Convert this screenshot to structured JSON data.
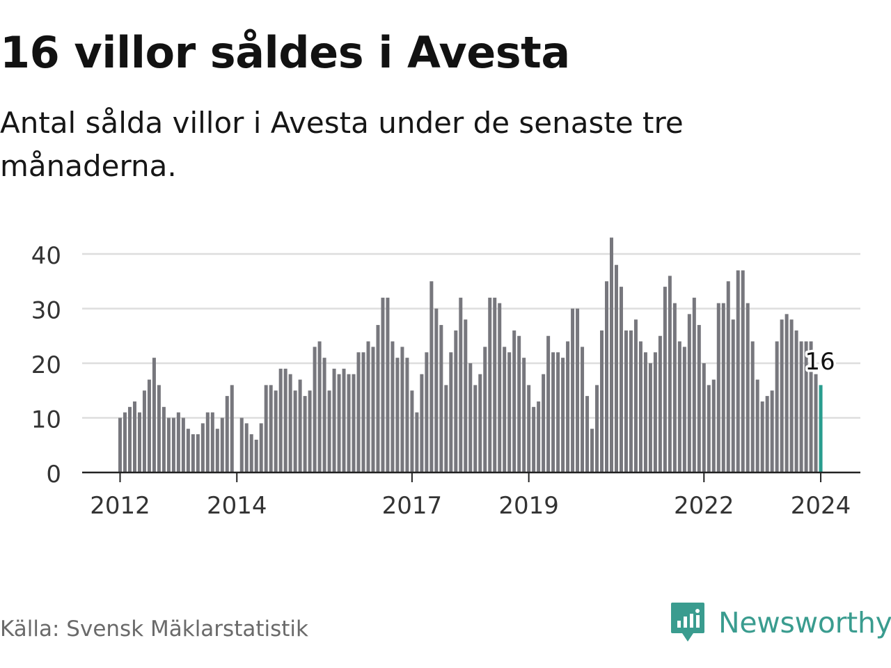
{
  "header": {
    "title": "16 villor såldes i Avesta",
    "subtitle": "Antal sålda villor i Avesta under de senaste tre månaderna."
  },
  "footer": {
    "source": "Källa: Svensk Mäklarstatistik",
    "brand": "Newsworthy",
    "brand_icon": "chart-bubble-icon"
  },
  "colors": {
    "bar": "#77777d",
    "highlight": "#2a9d8f",
    "grid": "#dddddd",
    "axis": "#222222",
    "brand": "#3a9c8f"
  },
  "chart_data": {
    "type": "bar",
    "title": "16 villor såldes i Avesta",
    "subtitle": "Antal sålda villor i Avesta under de senaste tre månaderna.",
    "xlabel": "",
    "ylabel": "",
    "ylim": [
      0,
      43
    ],
    "yticks": [
      0,
      10,
      20,
      30,
      40
    ],
    "grid": true,
    "x_tick_labels": [
      {
        "label": "2012",
        "index": 0
      },
      {
        "label": "2014",
        "index": 24
      },
      {
        "label": "2017",
        "index": 60
      },
      {
        "label": "2019",
        "index": 84
      },
      {
        "label": "2022",
        "index": 120
      },
      {
        "label": "2024",
        "index": 144
      }
    ],
    "values": [
      10,
      11,
      12,
      13,
      11,
      15,
      17,
      21,
      16,
      12,
      10,
      10,
      11,
      10,
      8,
      7,
      7,
      9,
      11,
      11,
      8,
      10,
      14,
      16,
      null,
      10,
      9,
      7,
      6,
      9,
      16,
      16,
      15,
      19,
      19,
      18,
      15,
      17,
      14,
      15,
      23,
      24,
      21,
      15,
      19,
      18,
      19,
      18,
      18,
      22,
      22,
      24,
      23,
      27,
      32,
      32,
      24,
      21,
      23,
      21,
      15,
      11,
      18,
      22,
      35,
      30,
      27,
      16,
      22,
      26,
      32,
      28,
      20,
      16,
      18,
      23,
      32,
      32,
      31,
      23,
      22,
      26,
      25,
      21,
      16,
      12,
      13,
      18,
      25,
      22,
      22,
      21,
      24,
      30,
      30,
      23,
      14,
      8,
      16,
      26,
      35,
      43,
      38,
      34,
      26,
      26,
      28,
      24,
      22,
      20,
      22,
      25,
      34,
      36,
      31,
      24,
      23,
      29,
      32,
      27,
      20,
      16,
      17,
      31,
      31,
      35,
      28,
      37,
      37,
      31,
      24,
      17,
      13,
      14,
      15,
      24,
      28,
      29,
      28,
      26,
      24,
      24,
      24,
      18,
      16
    ],
    "highlight_index": 144,
    "highlight_label": "16"
  }
}
